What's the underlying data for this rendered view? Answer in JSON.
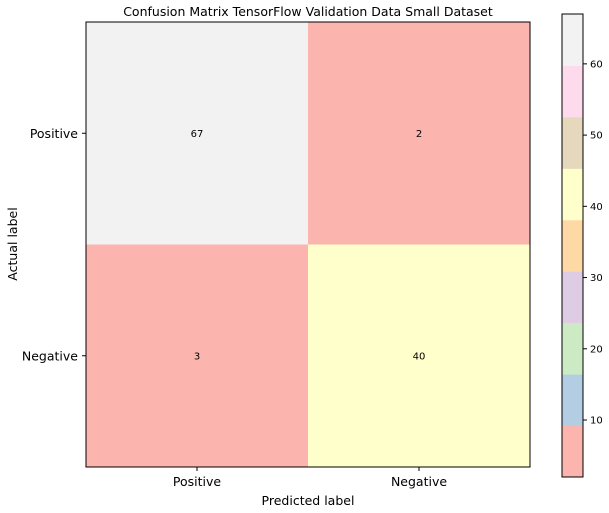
{
  "chart_data": {
    "type": "heatmap",
    "title": "Confusion Matrix TensorFlow Validation Data Small Dataset",
    "xlabel": "Predicted label",
    "ylabel": "Actual label",
    "x_categories": [
      "Positive",
      "Negative"
    ],
    "y_categories": [
      "Positive",
      "Negative"
    ],
    "values": [
      [
        67,
        2
      ],
      [
        3,
        40
      ]
    ],
    "value_labels": [
      [
        "67",
        "2"
      ],
      [
        "3",
        "40"
      ]
    ],
    "colormap": "Pastel1",
    "colormap_colors": [
      "#fbb4ae",
      "#b3cde3",
      "#ccebc5",
      "#decbe4",
      "#fed9a6",
      "#ffffcc",
      "#e5d8bd",
      "#fddaec",
      "#f2f2f2"
    ],
    "colorbar": {
      "range": [
        2,
        67
      ],
      "ticks": [
        10,
        20,
        30,
        40,
        50,
        60
      ],
      "tick_labels": [
        "10",
        "20",
        "30",
        "40",
        "50",
        "60"
      ]
    },
    "grid": false,
    "legend": "none"
  }
}
